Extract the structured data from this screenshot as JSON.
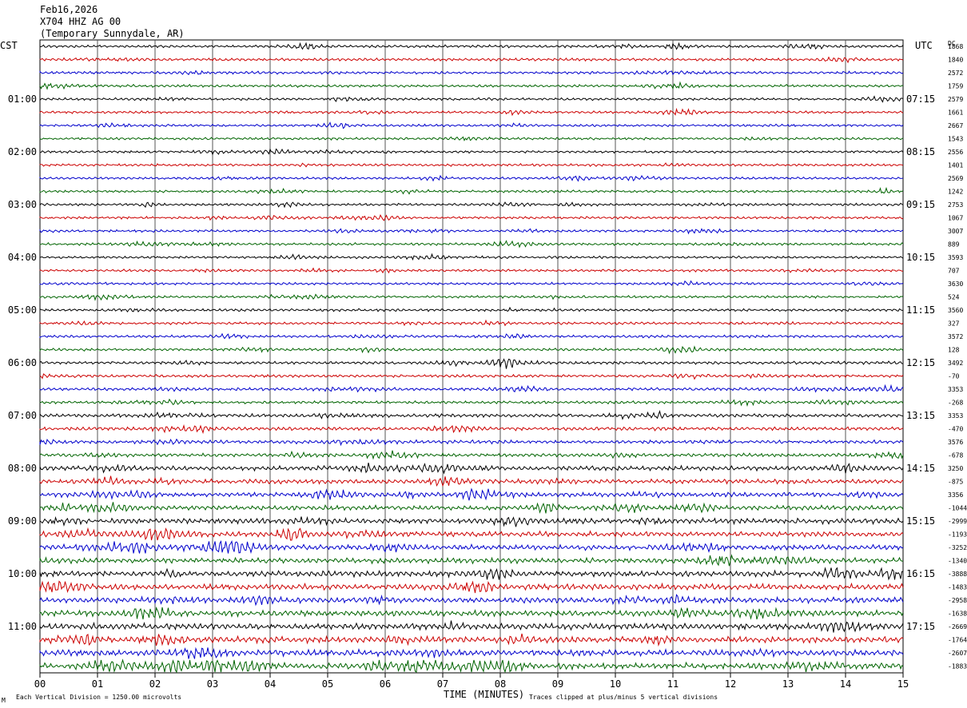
{
  "header": {
    "date": "Feb16,2026",
    "station": "X704 HHZ AG 00",
    "location": "(Temporary Sunnydale, AR)"
  },
  "left_timezone": "CST",
  "right_timezone": "UTC",
  "right_corner_label": "DC",
  "footer": {
    "scale_note": "Each Vertical Division = 1250.00 microvolts",
    "xlabel": "TIME (MINUTES)",
    "clip_note": "Traces clipped at plus/minus 5 vertical divisions",
    "corner_mark": "M"
  },
  "chart_data": {
    "type": "line",
    "title": "",
    "xlabel": "TIME (MINUTES)",
    "ylabel": "",
    "xlim": [
      0,
      15
    ],
    "x_ticks": [
      "00",
      "01",
      "02",
      "03",
      "04",
      "05",
      "06",
      "07",
      "08",
      "09",
      "10",
      "11",
      "12",
      "13",
      "14",
      "15"
    ],
    "grid": "vertical lines each minute",
    "rows_per_hour": 4,
    "minutes_per_row": 15,
    "row_count": 48,
    "trace_colors": [
      "#000000",
      "#cc0000",
      "#0000cc",
      "#006400"
    ],
    "left_hour_labels": [
      "01:00",
      "02:00",
      "03:00",
      "04:00",
      "05:00",
      "06:00",
      "07:00",
      "08:00",
      "09:00",
      "10:00",
      "11:00"
    ],
    "right_hour_labels": [
      "07:15",
      "08:15",
      "09:15",
      "10:15",
      "11:15",
      "12:15",
      "13:15",
      "14:15",
      "15:15",
      "16:15",
      "17:15"
    ],
    "dc_offsets": [
      "1868",
      "1840",
      "2572",
      "1759",
      "2579",
      "1661",
      "2667",
      "1543",
      "2556",
      "1401",
      "2569",
      "1242",
      "2753",
      "1067",
      "3007",
      "889",
      "3593",
      "707",
      "3630",
      "524",
      "3560",
      "327",
      "3572",
      "128",
      "3492",
      "-70",
      "3353",
      "-268",
      "3353",
      "-470",
      "3576",
      "-678",
      "3250",
      "-875",
      "3356",
      "-1044",
      "-2999",
      "-1193",
      "-3252",
      "-1340",
      "-3888",
      "-1483",
      "-2958",
      "-1638",
      "-2669",
      "-1764",
      "-2607",
      "-1883"
    ],
    "relative_amplitude_by_hour": [
      0.35,
      0.3,
      0.3,
      0.3,
      0.3,
      0.35,
      0.4,
      0.55,
      0.8,
      1.0,
      1.1,
      1.2
    ]
  }
}
